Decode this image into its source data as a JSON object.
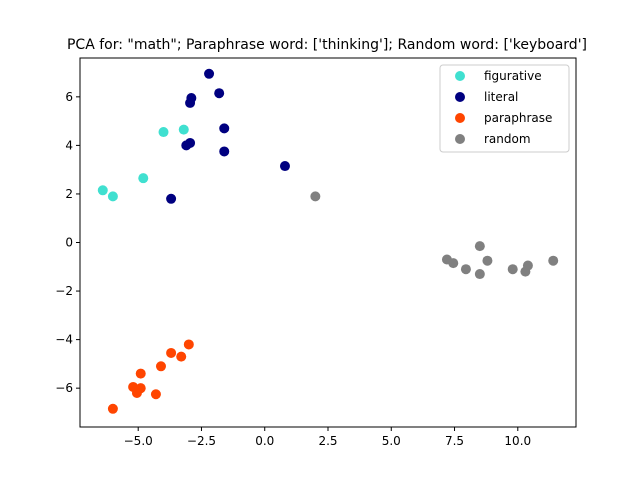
{
  "chart_data": {
    "type": "scatter",
    "title": "PCA for: \"math\"; Paraphrase word: ['thinking']; Random word: ['keyboard']",
    "xlabel": "",
    "ylabel": "",
    "xlim": [
      -7.3,
      12.3
    ],
    "ylim": [
      -7.6,
      7.6
    ],
    "x_ticks": [
      -5.0,
      -2.5,
      0.0,
      2.5,
      5.0,
      7.5,
      10.0
    ],
    "x_tick_labels": [
      "−5.0",
      "−2.5",
      "0.0",
      "2.5",
      "5.0",
      "7.5",
      "10.0"
    ],
    "y_ticks": [
      -6,
      -4,
      -2,
      0,
      2,
      4,
      6
    ],
    "y_tick_labels": [
      "−6",
      "−4",
      "−2",
      "0",
      "2",
      "4",
      "6"
    ],
    "grid": false,
    "legend_position": "top-right",
    "series": [
      {
        "name": "figurative",
        "color": "#40e0d0",
        "points": [
          [
            -6.4,
            2.15
          ],
          [
            -6.0,
            1.9
          ],
          [
            -4.8,
            2.65
          ],
          [
            -4.0,
            4.55
          ],
          [
            -3.2,
            4.65
          ]
        ]
      },
      {
        "name": "literal",
        "color": "#000080",
        "points": [
          [
            -2.2,
            6.95
          ],
          [
            -1.8,
            6.15
          ],
          [
            -2.9,
            5.95
          ],
          [
            -2.95,
            5.75
          ],
          [
            -1.6,
            4.7
          ],
          [
            -2.95,
            4.1
          ],
          [
            -3.1,
            4.0
          ],
          [
            -1.6,
            3.75
          ],
          [
            0.8,
            3.15
          ],
          [
            -3.7,
            1.8
          ]
        ]
      },
      {
        "name": "paraphrase",
        "color": "#ff4500",
        "points": [
          [
            -3.0,
            -4.2
          ],
          [
            -3.7,
            -4.55
          ],
          [
            -3.3,
            -4.7
          ],
          [
            -4.1,
            -5.1
          ],
          [
            -4.9,
            -5.4
          ],
          [
            -5.2,
            -5.95
          ],
          [
            -4.9,
            -6.0
          ],
          [
            -5.05,
            -6.2
          ],
          [
            -4.3,
            -6.25
          ],
          [
            -6.0,
            -6.85
          ]
        ]
      },
      {
        "name": "random",
        "color": "#808080",
        "points": [
          [
            2.0,
            1.9
          ],
          [
            8.5,
            -0.15
          ],
          [
            7.2,
            -0.7
          ],
          [
            7.45,
            -0.85
          ],
          [
            8.8,
            -0.75
          ],
          [
            7.95,
            -1.1
          ],
          [
            8.5,
            -1.3
          ],
          [
            9.8,
            -1.1
          ],
          [
            10.4,
            -0.95
          ],
          [
            10.3,
            -1.2
          ],
          [
            11.4,
            -0.75
          ]
        ]
      }
    ]
  }
}
